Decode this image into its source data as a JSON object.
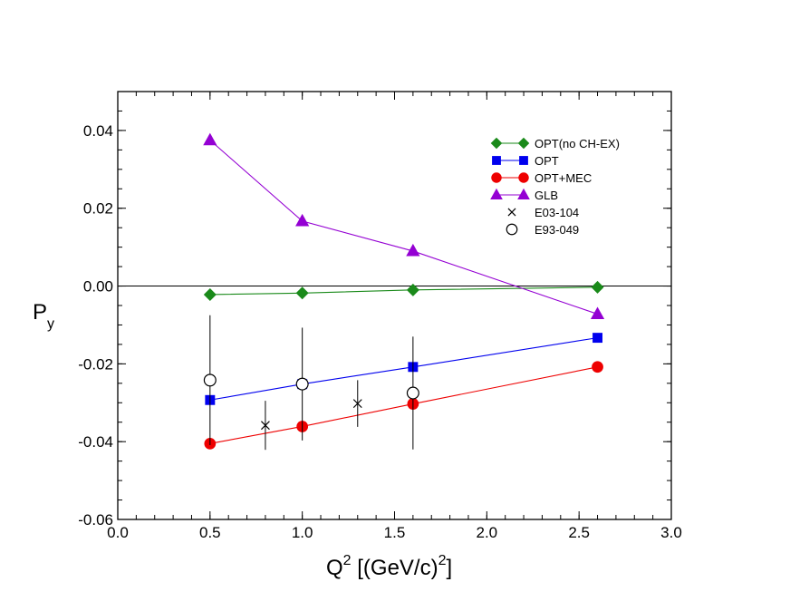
{
  "chart_data": {
    "type": "line",
    "xlabel": {
      "base": "Q",
      "sup": "2",
      "unit_open": " [(GeV/c)",
      "unit_sup": "2",
      "unit_close": "]"
    },
    "ylabel": {
      "base": "P",
      "sub": "y"
    },
    "xlim": [
      0.0,
      3.0
    ],
    "ylim": [
      -0.06,
      0.05
    ],
    "x_ticks": [
      "0.0",
      "0.5",
      "1.0",
      "1.5",
      "2.0",
      "2.5",
      "3.0"
    ],
    "x_tick_values": [
      0.0,
      0.5,
      1.0,
      1.5,
      2.0,
      2.5,
      3.0
    ],
    "y_ticks": [
      "-0.06",
      "-0.04",
      "-0.02",
      "0.00",
      "0.02",
      "0.04"
    ],
    "y_tick_values": [
      -0.06,
      -0.04,
      -0.02,
      0.0,
      0.02,
      0.04
    ],
    "zero_line": 0.0,
    "series": [
      {
        "name": "OPT(no CH-EX)",
        "marker": "diamond",
        "color": "#1a8a1a",
        "line": true,
        "x": [
          0.5,
          1.0,
          1.6,
          2.6
        ],
        "y": [
          -0.0022,
          -0.0018,
          -0.001,
          -0.0003
        ]
      },
      {
        "name": "OPT",
        "marker": "square",
        "color": "#0000ee",
        "line": true,
        "x": [
          0.5,
          1.0,
          1.6,
          2.6
        ],
        "y": [
          -0.0293,
          -0.0252,
          -0.0208,
          -0.0133
        ]
      },
      {
        "name": "OPT+MEC",
        "marker": "circle",
        "color": "#ee0000",
        "line": true,
        "x": [
          0.5,
          1.0,
          1.6,
          2.6
        ],
        "y": [
          -0.0405,
          -0.0361,
          -0.0303,
          -0.0208
        ]
      },
      {
        "name": "GLB",
        "marker": "triangle",
        "color": "#9400d3",
        "line": true,
        "x": [
          0.5,
          1.0,
          1.6,
          2.6
        ],
        "y": [
          0.0375,
          0.0167,
          0.009,
          -0.0072
        ]
      },
      {
        "name": "E03-104",
        "marker": "cross",
        "color": "#000000",
        "line": false,
        "x": [
          0.8,
          1.3
        ],
        "y": [
          -0.0358,
          -0.0302
        ],
        "err": [
          0.0063,
          0.006
        ]
      },
      {
        "name": "E93-049",
        "marker": "open-circle",
        "color": "#000000",
        "line": false,
        "x": [
          0.5,
          1.0,
          1.6
        ],
        "y": [
          -0.0242,
          -0.0252,
          -0.0275
        ],
        "err": [
          0.0167,
          0.0145,
          0.0145
        ]
      }
    ]
  }
}
